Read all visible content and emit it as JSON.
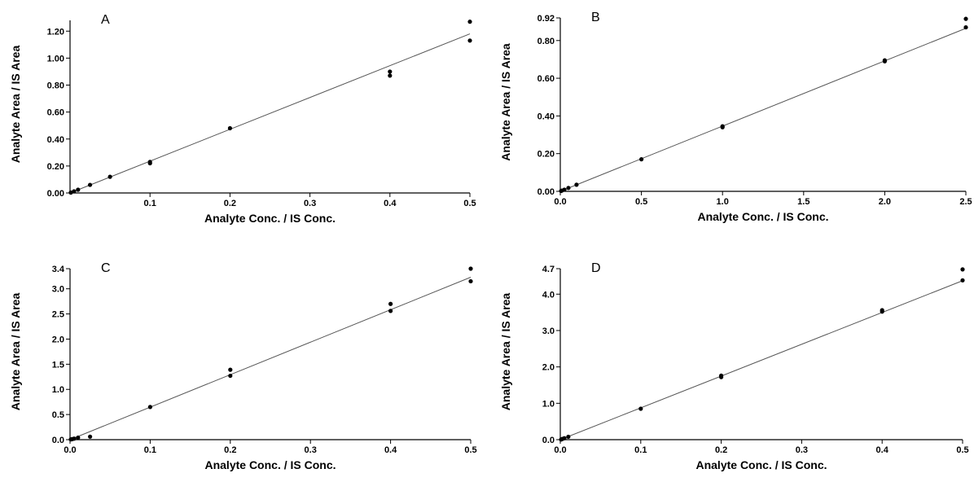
{
  "chart_data": [
    {
      "type": "scatter",
      "panel_label": "A",
      "xlabel": "Analyte Conc. / IS Conc.",
      "ylabel": "Analyte Area / IS Area",
      "xlim": [
        0.0,
        0.5
      ],
      "ylim": [
        0.0,
        1.28
      ],
      "xticks": [
        {
          "v": 0.1,
          "label": "0.1"
        },
        {
          "v": 0.2,
          "label": "0.2"
        },
        {
          "v": 0.3,
          "label": "0.3"
        },
        {
          "v": 0.4,
          "label": "0.4"
        },
        {
          "v": 0.5,
          "label": "0.5"
        }
      ],
      "yticks": [
        {
          "v": 0.0,
          "label": "0.00"
        },
        {
          "v": 0.2,
          "label": "0.20"
        },
        {
          "v": 0.4,
          "label": "0.40"
        },
        {
          "v": 0.6,
          "label": "0.60"
        },
        {
          "v": 0.8,
          "label": "0.80"
        },
        {
          "v": 1.0,
          "label": "1.00"
        },
        {
          "v": 1.2,
          "label": "1.20"
        }
      ],
      "points": [
        [
          0.001,
          0.003
        ],
        [
          0.005,
          0.012
        ],
        [
          0.01,
          0.024
        ],
        [
          0.025,
          0.06
        ],
        [
          0.05,
          0.12
        ],
        [
          0.1,
          0.22
        ],
        [
          0.1,
          0.23
        ],
        [
          0.2,
          0.48
        ],
        [
          0.4,
          0.87
        ],
        [
          0.4,
          0.9
        ],
        [
          0.5,
          1.13
        ],
        [
          0.5,
          1.27
        ]
      ],
      "fit": {
        "x": [
          0.0,
          0.5
        ],
        "y": [
          0.0,
          1.18
        ]
      },
      "grid": false
    },
    {
      "type": "scatter",
      "panel_label": "B",
      "xlabel": "Analyte Conc. / IS Conc.",
      "ylabel": "Analyte Area / IS Area",
      "xlim": [
        0.0,
        2.5
      ],
      "ylim": [
        0.0,
        0.92
      ],
      "xticks": [
        {
          "v": 0.0,
          "label": "0.0"
        },
        {
          "v": 0.5,
          "label": "0.5"
        },
        {
          "v": 1.0,
          "label": "1.0"
        },
        {
          "v": 1.5,
          "label": "1.5"
        },
        {
          "v": 2.0,
          "label": "2.0"
        },
        {
          "v": 2.5,
          "label": "2.5"
        }
      ],
      "yticks": [
        {
          "v": 0.0,
          "label": "0.00"
        },
        {
          "v": 0.2,
          "label": "0.20"
        },
        {
          "v": 0.4,
          "label": "0.40"
        },
        {
          "v": 0.6,
          "label": "0.60"
        },
        {
          "v": 0.8,
          "label": "0.80"
        },
        {
          "v": 0.92,
          "label": "0.92"
        }
      ],
      "points": [
        [
          0.005,
          0.002
        ],
        [
          0.01,
          0.004
        ],
        [
          0.025,
          0.009
        ],
        [
          0.05,
          0.018
        ],
        [
          0.1,
          0.035
        ],
        [
          0.5,
          0.17
        ],
        [
          1.0,
          0.34
        ],
        [
          1.0,
          0.345
        ],
        [
          2.0,
          0.69
        ],
        [
          2.0,
          0.695
        ],
        [
          2.5,
          0.87
        ],
        [
          2.5,
          0.915
        ]
      ],
      "fit": {
        "x": [
          0.0,
          2.5
        ],
        "y": [
          0.0,
          0.865
        ]
      },
      "grid": false
    },
    {
      "type": "scatter",
      "panel_label": "C",
      "xlabel": "Analyte Conc. / IS Conc.",
      "ylabel": "Analyte Area / IS Area",
      "xlim": [
        0.0,
        0.5
      ],
      "ylim": [
        0.0,
        3.4
      ],
      "xticks": [
        {
          "v": 0.0,
          "label": "0.0"
        },
        {
          "v": 0.1,
          "label": "0.1"
        },
        {
          "v": 0.2,
          "label": "0.2"
        },
        {
          "v": 0.3,
          "label": "0.3"
        },
        {
          "v": 0.4,
          "label": "0.4"
        },
        {
          "v": 0.5,
          "label": "0.5"
        }
      ],
      "yticks": [
        {
          "v": 0.0,
          "label": "0.0"
        },
        {
          "v": 0.5,
          "label": "0.5"
        },
        {
          "v": 1.0,
          "label": "1.0"
        },
        {
          "v": 1.5,
          "label": "1.5"
        },
        {
          "v": 2.0,
          "label": "2.0"
        },
        {
          "v": 2.5,
          "label": "2.5"
        },
        {
          "v": 3.0,
          "label": "3.0"
        },
        {
          "v": 3.4,
          "label": "3.4"
        }
      ],
      "points": [
        [
          0.001,
          0.005
        ],
        [
          0.0025,
          0.01
        ],
        [
          0.005,
          0.02
        ],
        [
          0.01,
          0.04
        ],
        [
          0.025,
          0.06
        ],
        [
          0.1,
          0.65
        ],
        [
          0.2,
          1.27
        ],
        [
          0.2,
          1.39
        ],
        [
          0.4,
          2.56
        ],
        [
          0.4,
          2.7
        ],
        [
          0.5,
          3.15
        ],
        [
          0.5,
          3.4
        ]
      ],
      "fit": {
        "x": [
          0.0,
          0.5
        ],
        "y": [
          0.0,
          3.23
        ]
      },
      "grid": false
    },
    {
      "type": "scatter",
      "panel_label": "D",
      "xlabel": "Analyte Conc. / IS Conc.",
      "ylabel": "Analyte Area / IS Area",
      "xlim": [
        0.0,
        0.5
      ],
      "ylim": [
        0.0,
        4.7
      ],
      "xticks": [
        {
          "v": 0.0,
          "label": "0.0"
        },
        {
          "v": 0.1,
          "label": "0.1"
        },
        {
          "v": 0.2,
          "label": "0.2"
        },
        {
          "v": 0.3,
          "label": "0.3"
        },
        {
          "v": 0.4,
          "label": "0.4"
        },
        {
          "v": 0.5,
          "label": "0.5"
        }
      ],
      "yticks": [
        {
          "v": 0.0,
          "label": "0.0"
        },
        {
          "v": 1.0,
          "label": "1.0"
        },
        {
          "v": 2.0,
          "label": "2.0"
        },
        {
          "v": 3.0,
          "label": "3.0"
        },
        {
          "v": 4.0,
          "label": "4.0"
        },
        {
          "v": 4.7,
          "label": "4.7"
        }
      ],
      "points": [
        [
          0.001,
          0.005
        ],
        [
          0.0025,
          0.02
        ],
        [
          0.005,
          0.04
        ],
        [
          0.01,
          0.08
        ],
        [
          0.1,
          0.85
        ],
        [
          0.2,
          1.72
        ],
        [
          0.2,
          1.76
        ],
        [
          0.4,
          3.52
        ],
        [
          0.4,
          3.56
        ],
        [
          0.5,
          4.38
        ],
        [
          0.5,
          4.68
        ]
      ],
      "fit": {
        "x": [
          0.0,
          0.5
        ],
        "y": [
          0.0,
          4.37
        ]
      },
      "grid": false
    }
  ]
}
